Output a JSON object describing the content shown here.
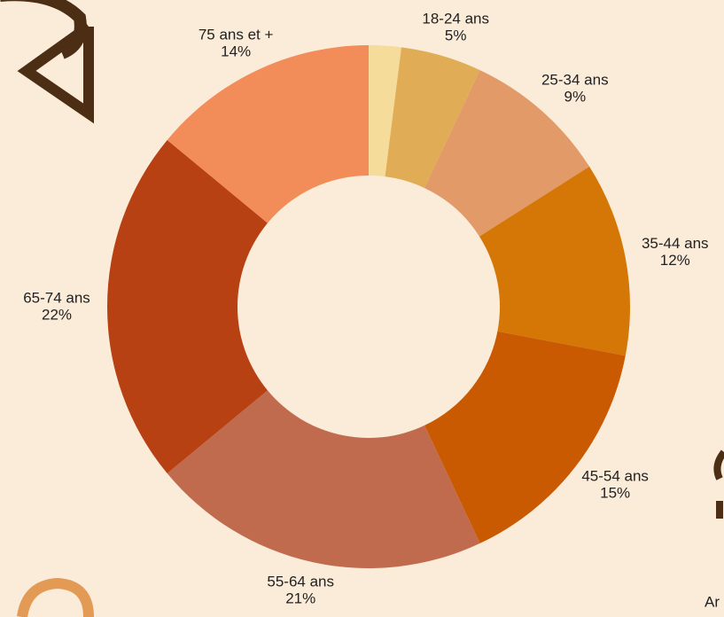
{
  "chart_data": {
    "type": "donut",
    "categories": [
      null,
      "18-24 ans",
      "25-34 ans",
      "35-44 ans",
      "45-54 ans",
      "55-64 ans",
      "65-74 ans",
      "75 ans et +"
    ],
    "values": [
      2,
      5,
      9,
      12,
      15,
      21,
      22,
      14
    ],
    "value_labels": [
      null,
      "5%",
      "9%",
      "12%",
      "15%",
      "21%",
      "22%",
      "14%"
    ],
    "colors": [
      "#f5dc9a",
      "#e0ac55",
      "#e29a68",
      "#d57706",
      "#c95a01",
      "#c06b4e",
      "#b84113",
      "#f28c58"
    ],
    "note": "Ar"
  }
}
